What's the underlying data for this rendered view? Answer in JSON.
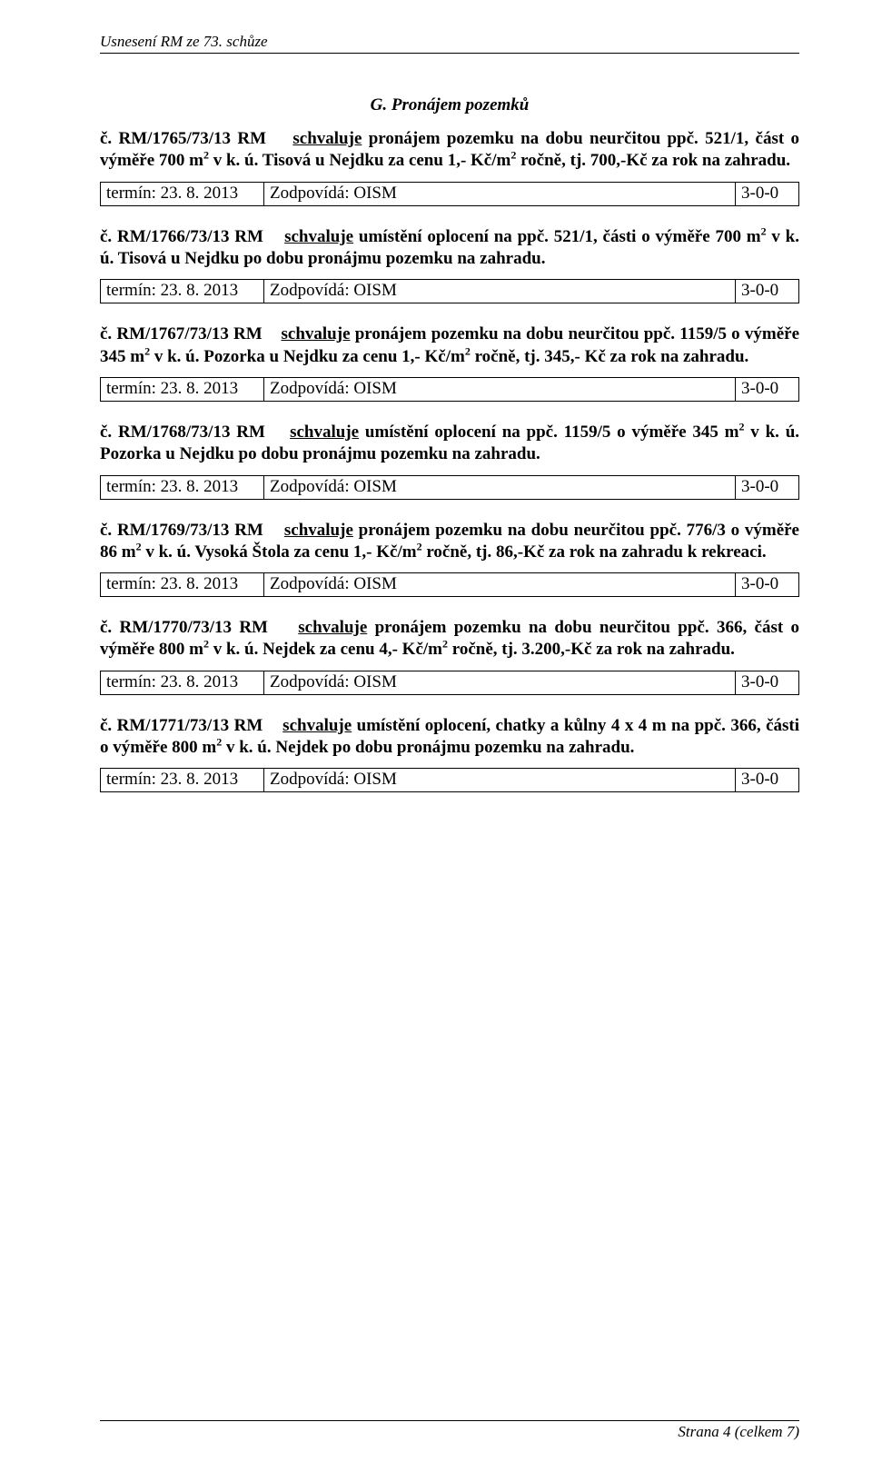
{
  "header": "Usnesení RM ze 73. schůze",
  "section_title": "G. Pronájem pozemků",
  "term_label_prefix": "termín: ",
  "term_date": "23. 8. 2013",
  "resp_label": "Zodpovídá: OISM",
  "vote": "3-0-0",
  "footer": "Strana 4 (celkem 7)",
  "items": {
    "r1": {
      "ref": "č. RM/1765/73/13 RM",
      "action": "schvaluje",
      "body_a": " pronájem pozemku na dobu neurčitou ppč. 521/1, část o výměře 700 m",
      "body_b": " v k. ú. Tisová u Nejdku za cenu 1,- Kč/m",
      "body_c": " ročně, tj. 700,-Kč za rok na zahradu."
    },
    "r2": {
      "ref": "č. RM/1766/73/13 RM",
      "action": "schvaluje",
      "body_a": " umístění oplocení na ppč. 521/1, části o výměře 700 m",
      "body_b": " v k. ú. Tisová u Nejdku po dobu pronájmu pozemku na zahradu."
    },
    "r3": {
      "ref": "č. RM/1767/73/13 RM",
      "action": "schvaluje",
      "body_a": " pronájem pozemku na dobu neurčitou ppč. 1159/5 o výměře 345 m",
      "body_b": " v k. ú. Pozorka u Nejdku za cenu 1,- Kč/m",
      "body_c": " ročně, tj. 345,- Kč za rok na zahradu."
    },
    "r4": {
      "ref": "č. RM/1768/73/13 RM",
      "action": "schvaluje",
      "body_a": " umístění oplocení na ppč. 1159/5 o výměře 345 m",
      "body_b": " v k. ú. Pozorka u Nejdku po dobu pronájmu pozemku na zahradu."
    },
    "r5": {
      "ref": "č. RM/1769/73/13 RM",
      "action": "schvaluje",
      "body_a": " pronájem pozemku na dobu neurčitou ppč. 776/3 o výměře 86 m",
      "body_b": " v k. ú. Vysoká Štola za cenu 1,- Kč/m",
      "body_c": " ročně, tj. 86,-Kč za rok na zahradu k rekreaci."
    },
    "r6": {
      "ref": "č. RM/1770/73/13 RM",
      "action": "schvaluje",
      "body_a": " pronájem pozemku na dobu neurčitou ppč. 366, část o výměře 800 m",
      "body_b": " v k. ú. Nejdek za cenu 4,- Kč/m",
      "body_c": " ročně, tj. 3.200,-Kč za rok na zahradu."
    },
    "r7": {
      "ref": "č. RM/1771/73/13 RM",
      "action": "schvaluje",
      "body_a": " umístění oplocení, chatky a kůlny 4 x 4 m na ppč. 366, části o výměře 800 m",
      "body_b": " v k. ú. Nejdek po dobu pronájmu pozemku na zahradu."
    }
  }
}
